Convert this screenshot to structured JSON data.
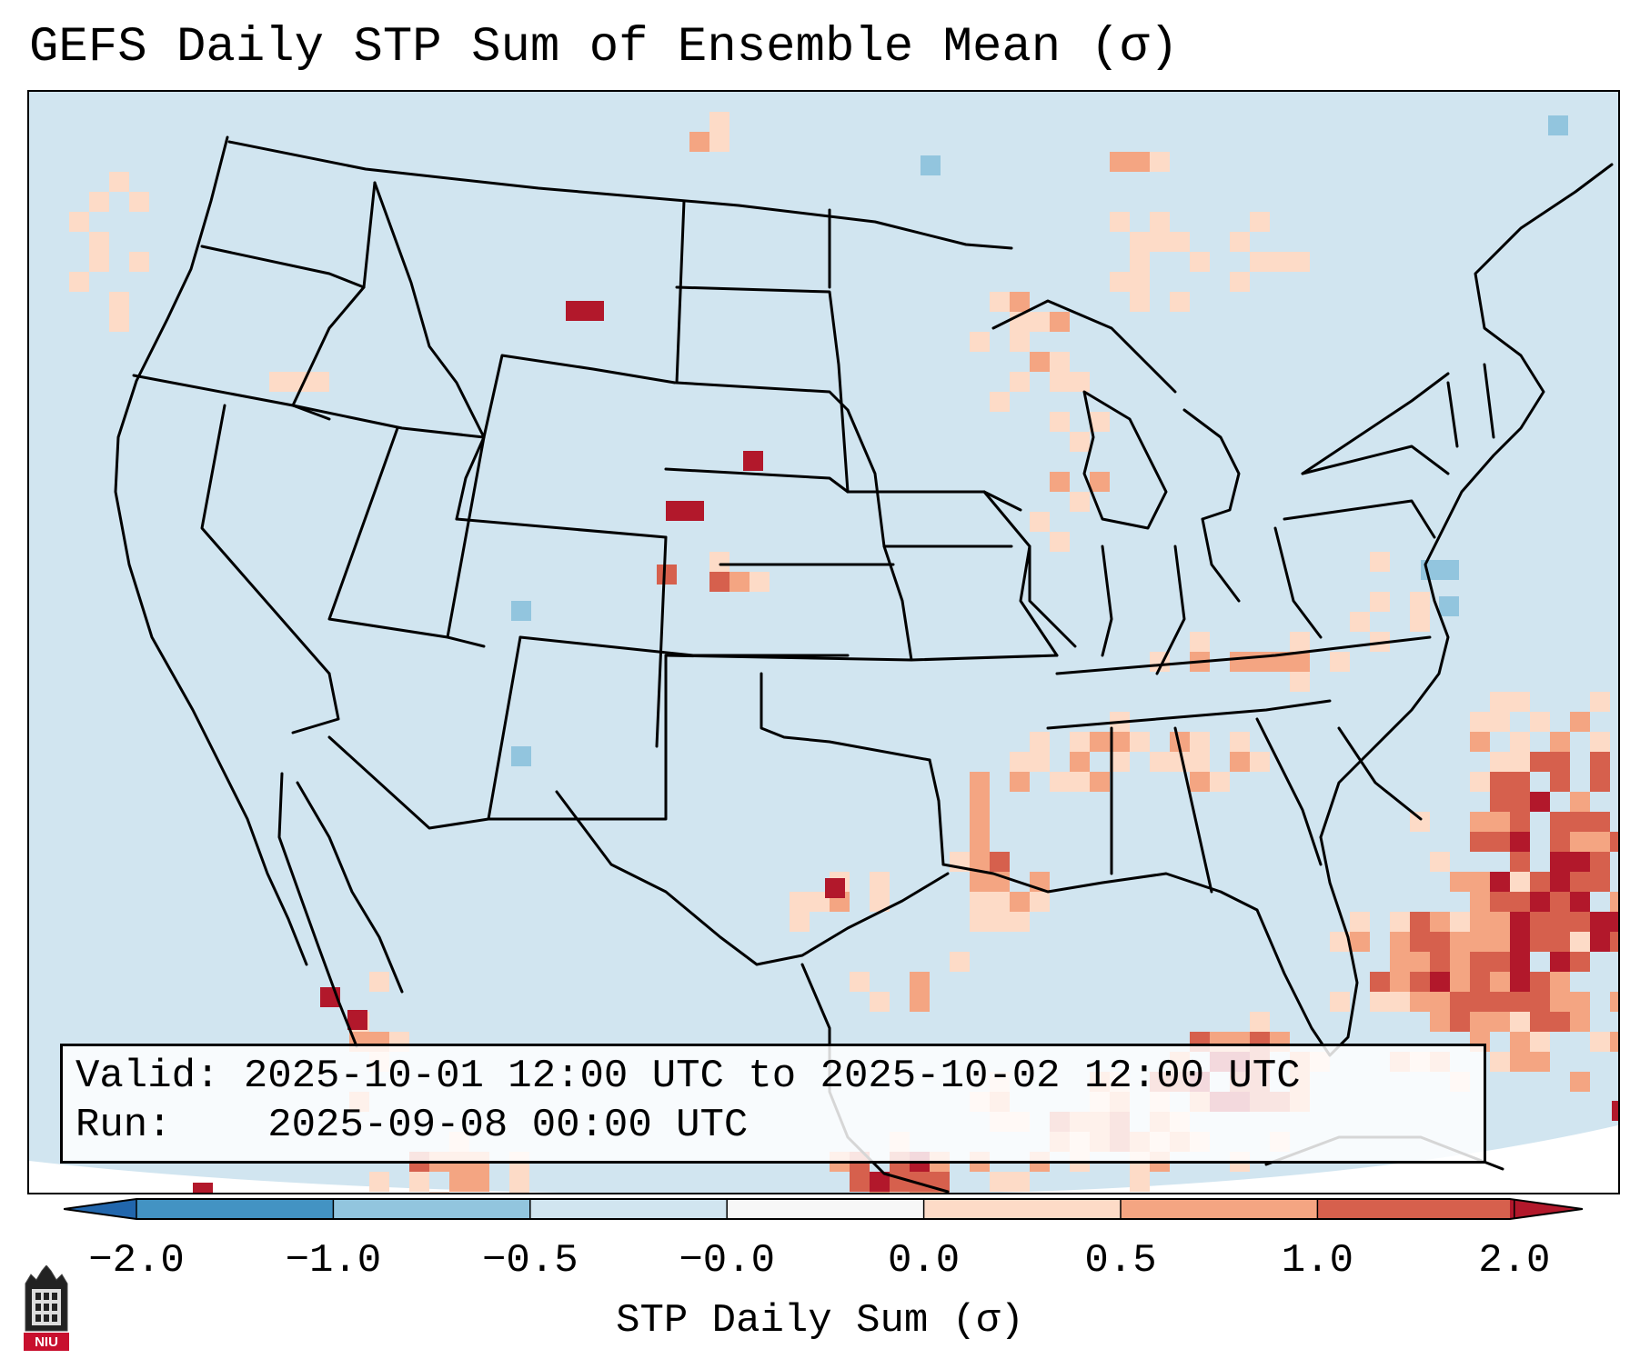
{
  "title": "GEFS Daily STP Sum of Ensemble Mean (σ)",
  "info": {
    "valid_label": "Valid:",
    "valid_value": "2025-10-01 12:00 UTC to 2025-10-02 12:00 UTC",
    "run_label": "Run:",
    "run_value": "2025-09-08 00:00 UTC"
  },
  "colorbar": {
    "label": "STP Daily Sum (σ)",
    "ticks": [
      "−2.0",
      "−1.0",
      "−0.5",
      "−0.0",
      "0.0",
      "0.5",
      "1.0",
      "2.0"
    ],
    "bins": [
      {
        "from": -2.0,
        "to": -1.0,
        "color": "#4393c3"
      },
      {
        "from": -1.0,
        "to": -0.5,
        "color": "#92c5de"
      },
      {
        "from": -0.5,
        "to": -0.0,
        "color": "#d1e5f0"
      },
      {
        "from": -0.0,
        "to": 0.0,
        "color": "#f7f7f7"
      },
      {
        "from": 0.0,
        "to": 0.5,
        "color": "#fddbc7"
      },
      {
        "from": 0.5,
        "to": 1.0,
        "color": "#f4a582"
      },
      {
        "from": 1.0,
        "to": 2.0,
        "color": "#d6604d"
      }
    ],
    "under_color": "#2166ac",
    "over_color": "#b2182b"
  },
  "colors": {
    "background_field": "#d1e5f0",
    "low_positive": "#fddbc7",
    "mid_positive": "#f4a582",
    "high_positive": "#d6604d",
    "extreme_positive": "#b2182b",
    "low_negative": "#92c5de",
    "boundaries": "#000000"
  },
  "logo": {
    "text": "NIU",
    "icon": "niu-tower-logo-icon"
  }
}
